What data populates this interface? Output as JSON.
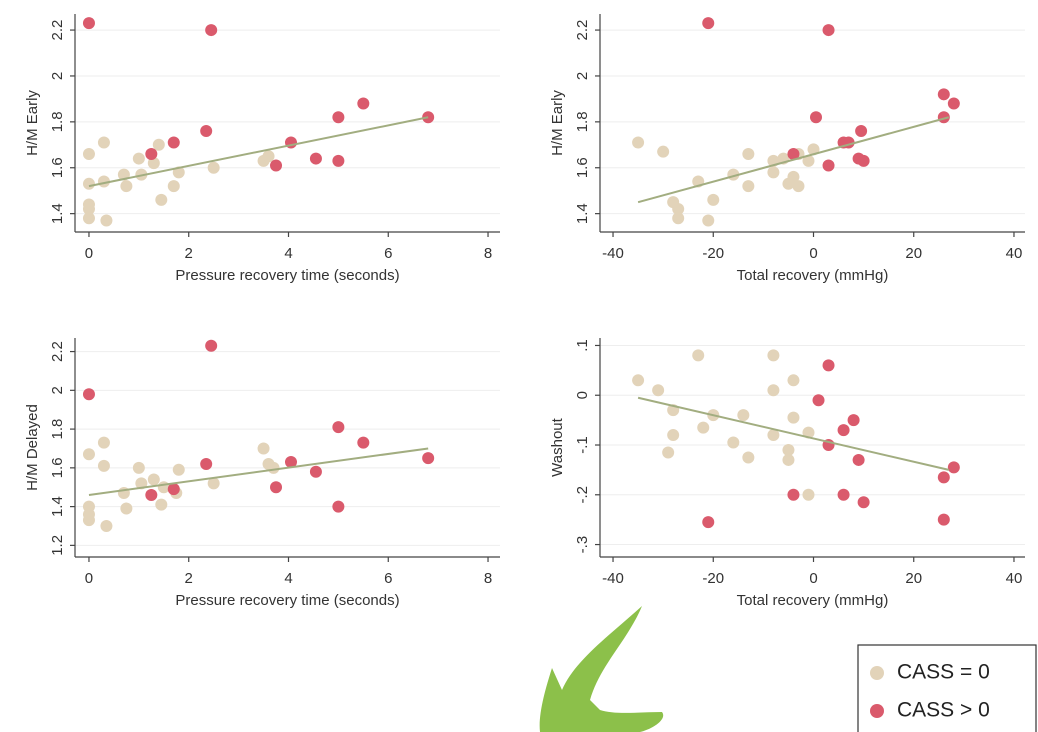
{
  "chart_data": [
    {
      "type": "scatter",
      "xlabel": "Pressure recovery time (seconds)",
      "ylabel": "H/M Early",
      "xlim": [
        -0.28,
        8.24
      ],
      "ylim": [
        1.32,
        2.27
      ],
      "xticks": [
        0,
        2,
        4,
        6,
        8
      ],
      "yticks": [
        1.4,
        1.6,
        1.8,
        2,
        2.2
      ],
      "grid": true,
      "series": [
        {
          "name": "CASS = 0",
          "color": "#e2d3b9",
          "x": [
            0,
            0,
            0,
            0,
            0,
            0.3,
            0.3,
            0.35,
            0.7,
            0.75,
            1.0,
            1.05,
            1.3,
            1.4,
            1.45,
            1.7,
            1.8,
            2.5,
            3.5,
            3.6
          ],
          "values": [
            1.66,
            1.53,
            1.44,
            1.42,
            1.38,
            1.71,
            1.54,
            1.37,
            1.57,
            1.52,
            1.64,
            1.57,
            1.62,
            1.7,
            1.46,
            1.52,
            1.58,
            1.6,
            1.63,
            1.65
          ]
        },
        {
          "name": "CASS > 0",
          "color": "#da5a6c",
          "x": [
            0,
            2.45,
            1.25,
            1.7,
            2.35,
            3.75,
            4.05,
            4.55,
            5.0,
            5.0,
            5.5,
            6.8
          ],
          "values": [
            2.23,
            2.2,
            1.66,
            1.71,
            1.76,
            1.61,
            1.71,
            1.64,
            1.82,
            1.63,
            1.88,
            1.82
          ]
        }
      ],
      "fit": {
        "color": "#a2ad80",
        "x": [
          0,
          6.8
        ],
        "y": [
          1.52,
          1.82
        ]
      }
    },
    {
      "type": "scatter",
      "xlabel": "Total recovery (mmHg)",
      "ylabel": "H/M Early",
      "xlim": [
        -42.6,
        42.2
      ],
      "ylim": [
        1.32,
        2.27
      ],
      "xticks": [
        -40,
        -20,
        0,
        20,
        40
      ],
      "yticks": [
        1.4,
        1.6,
        1.8,
        2,
        2.2
      ],
      "grid": true,
      "series": [
        {
          "color": "#e2d3b9",
          "x": [
            -35,
            -30,
            -28,
            -27,
            -27,
            -23,
            -21,
            -20,
            -16,
            -13,
            -13,
            -8,
            -8,
            -6,
            -5,
            -4,
            -3,
            -1,
            0,
            -3
          ],
          "values": [
            1.71,
            1.67,
            1.45,
            1.42,
            1.38,
            1.54,
            1.37,
            1.46,
            1.57,
            1.66,
            1.52,
            1.63,
            1.58,
            1.64,
            1.53,
            1.56,
            1.52,
            1.63,
            1.68,
            1.66
          ]
        },
        {
          "color": "#da5a6c",
          "x": [
            -21,
            3,
            0.5,
            -4,
            3,
            6,
            7,
            9,
            10,
            9.5,
            26,
            28,
            26
          ],
          "values": [
            2.23,
            2.2,
            1.82,
            1.66,
            1.61,
            1.71,
            1.71,
            1.64,
            1.63,
            1.76,
            1.92,
            1.88,
            1.82
          ]
        }
      ],
      "fit": {
        "color": "#a2ad80",
        "x": [
          -35,
          27
        ],
        "y": [
          1.45,
          1.82
        ]
      }
    },
    {
      "type": "scatter",
      "xlabel": "Pressure recovery time (seconds)",
      "ylabel": "H/M Delayed",
      "xlim": [
        -0.28,
        8.24
      ],
      "ylim": [
        1.14,
        2.27
      ],
      "xticks": [
        0,
        2,
        4,
        6,
        8
      ],
      "yticks": [
        1.2,
        1.4,
        1.6,
        1.8,
        2,
        2.2
      ],
      "grid": true,
      "series": [
        {
          "color": "#e2d3b9",
          "x": [
            0,
            0,
            0,
            0,
            0.3,
            0.3,
            0.35,
            0.7,
            0.75,
            1.0,
            1.05,
            1.3,
            1.45,
            1.5,
            1.75,
            1.8,
            2.5,
            3.5,
            3.6,
            3.7
          ],
          "values": [
            1.67,
            1.4,
            1.36,
            1.33,
            1.73,
            1.61,
            1.3,
            1.47,
            1.39,
            1.6,
            1.52,
            1.54,
            1.41,
            1.5,
            1.47,
            1.59,
            1.52,
            1.7,
            1.62,
            1.6
          ]
        },
        {
          "color": "#da5a6c",
          "x": [
            0,
            2.45,
            1.25,
            1.7,
            2.35,
            3.75,
            4.05,
            4.55,
            5.0,
            5.0,
            5.5,
            6.8
          ],
          "values": [
            1.98,
            2.23,
            1.46,
            1.49,
            1.62,
            1.5,
            1.63,
            1.58,
            1.81,
            1.4,
            1.73,
            1.65
          ]
        }
      ],
      "fit": {
        "color": "#a2ad80",
        "x": [
          0,
          6.8
        ],
        "y": [
          1.46,
          1.7
        ]
      }
    },
    {
      "type": "scatter",
      "xlabel": "Total recovery (mmHg)",
      "ylabel": "Washout",
      "xlim": [
        -42.6,
        42.2
      ],
      "ylim": [
        -0.325,
        0.115
      ],
      "xticks": [
        -40,
        -20,
        0,
        20,
        40
      ],
      "yticks": [
        {
          "value": 0.1,
          "label": ".1"
        },
        0,
        {
          "value": -0.1,
          "label": "-.1"
        },
        {
          "value": -0.2,
          "label": "-.2"
        },
        {
          "value": -0.3,
          "label": "-.3"
        }
      ],
      "grid": true,
      "series": [
        {
          "color": "#e2d3b9",
          "x": [
            -35,
            -31,
            -23,
            -28,
            -28,
            -29,
            -22,
            -20,
            -16,
            -14,
            -13,
            -8,
            -8,
            -8,
            -4,
            -4,
            -5,
            -5,
            -1,
            -1
          ],
          "values": [
            0.03,
            0.01,
            0.08,
            -0.03,
            -0.08,
            -0.115,
            -0.065,
            -0.04,
            -0.095,
            -0.04,
            -0.125,
            0.08,
            0.01,
            -0.08,
            0.03,
            -0.045,
            -0.11,
            -0.13,
            -0.075,
            -0.2
          ]
        },
        {
          "color": "#da5a6c",
          "x": [
            3,
            1,
            8,
            6,
            3,
            9,
            -4,
            6,
            10,
            -21,
            26,
            28,
            26
          ],
          "values": [
            0.06,
            -0.01,
            -0.05,
            -0.07,
            -0.1,
            -0.13,
            -0.2,
            -0.2,
            -0.215,
            -0.255,
            -0.25,
            -0.145,
            -0.165
          ]
        }
      ],
      "fit": {
        "color": "#a2ad80",
        "x": [
          -35,
          27
        ],
        "y": [
          -0.005,
          -0.15
        ]
      }
    }
  ]
}
